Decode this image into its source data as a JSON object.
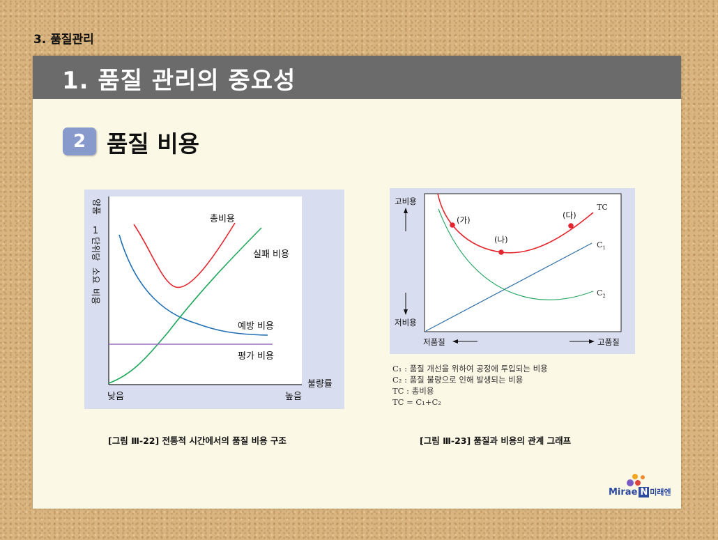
{
  "header": {
    "section_label": "3. 품질관리"
  },
  "slide": {
    "title": "1. 품질 관리의 중요성",
    "badge": "2",
    "subtitle": "품질 비용"
  },
  "figure1": {
    "caption": "[그림 Ⅲ-22] 전통적 시간에서의 품질 비용 구조",
    "y_label": [
      "양품",
      "1",
      "단위당",
      "소요",
      "비용"
    ],
    "x_label": "불량률",
    "x_tick_low": "낮음",
    "x_tick_high": "높음",
    "curve_labels": {
      "total": "총비용",
      "failure": "실패 비용",
      "prevention": "예방 비용",
      "appraisal": "평가 비용"
    },
    "colors": {
      "total": "#e3262e",
      "failure": "#1ea65a",
      "prevention": "#1f6fb5",
      "appraisal": "#9b6fc0"
    }
  },
  "figure2": {
    "caption": "[그림 Ⅲ-23] 품질과 비용의 관계 그래프",
    "y_top": "고비용",
    "y_bottom": "저비용",
    "x_left": "저품질",
    "x_right": "고품질",
    "points": [
      "(가)",
      "(나)",
      "(다)"
    ],
    "series_labels": {
      "tc": "TC",
      "c1": "C",
      "c1_sub": "1",
      "c2": "C",
      "c2_sub": "2"
    },
    "legend": [
      "C₁ : 품질 개선을 위하여 공정에 투입되는 비용",
      "C₂ : 품질 불량으로 인해 발생되는 비용",
      "TC : 총비용",
      "TC = C₁+C₂"
    ],
    "colors": {
      "tc": "#e3262e",
      "c1": "#2f6fa8",
      "c2": "#2aa866",
      "point": "#e3262e"
    }
  },
  "logo": {
    "brand": "Mirae",
    "n": "N",
    "korean": "미래엔"
  }
}
